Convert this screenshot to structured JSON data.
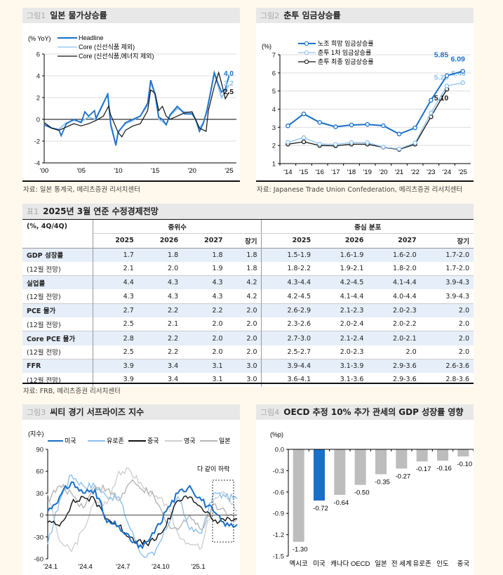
{
  "colors": {
    "blue": "#1a6fc9",
    "lightblue": "#8cc0ee",
    "black": "#111111",
    "gray": "#c8c8c8",
    "gray2": "#b0b0b0",
    "bar_gray": "#bdbdbd",
    "bar_us": "#1a6fc9",
    "background": "#fef9ec"
  },
  "fig1": {
    "num": "그림1",
    "title": "일본 물가상승률",
    "source": "자료: 일본 통계국, 메리츠증권 리서치센터"
  },
  "fig2": {
    "num": "그림2",
    "title": "춘투 임금상승률",
    "source": "자료: Japanese Trade Union Confederation, 메리츠증권 리서치센터"
  },
  "fig3": {
    "num": "그림3",
    "title": "씨티 경기 서프라이즈 지수",
    "annotation": "다 같이 하락"
  },
  "fig4": {
    "num": "그림4",
    "title": "OECD 추정 10% 추가 관세의 GDP 성장률 영향"
  },
  "table": {
    "num": "표1",
    "title": "2025년 3월 연준 수정경제전망",
    "unit": "(%, 4Q/4Q)",
    "group1": "중위수",
    "group2": "중심 분포",
    "cols": [
      "2025",
      "2026",
      "2027",
      "장기",
      "2025",
      "2026",
      "2027",
      "장기"
    ],
    "rows": [
      {
        "label": "GDP 성장률",
        "bold": true,
        "v": [
          "1.7",
          "1.8",
          "1.8",
          "1.8",
          "1.5-1.9",
          "1.6-1.9",
          "1.6-2.0",
          "1.7-2.0"
        ]
      },
      {
        "label": "(12월 전망)",
        "bold": false,
        "v": [
          "2.1",
          "2.0",
          "1.9",
          "1.8",
          "1.8-2.2",
          "1.9-2.1",
          "1.8-2.0",
          "1.7-2.0"
        ]
      },
      {
        "label": "실업률",
        "bold": true,
        "v": [
          "4.4",
          "4.3",
          "4.3",
          "4.2",
          "4.3-4.4",
          "4.2-4.5",
          "4.1-4.4",
          "3.9-4.3"
        ]
      },
      {
        "label": "(12월 전망)",
        "bold": false,
        "v": [
          "4.3",
          "4.3",
          "4.3",
          "4.2",
          "4.2-4.5",
          "4.1-4.4",
          "4.0-4.4",
          "3.9-4.3"
        ]
      },
      {
        "label": "PCE 물가",
        "bold": true,
        "v": [
          "2.7",
          "2.2",
          "2.2",
          "2.0",
          "2.6-2.9",
          "2.1-2.3",
          "2.0-2.3",
          "2.0"
        ]
      },
      {
        "label": "(12월 전망)",
        "bold": false,
        "v": [
          "2.5",
          "2.1",
          "2.0",
          "2.0",
          "2.3-2.6",
          "2.0-2.4",
          "2.0-2.2",
          "2.0"
        ]
      },
      {
        "label": "Core PCE 물가",
        "bold": true,
        "v": [
          "2.8",
          "2.2",
          "2.0",
          "2.0",
          "2.7-3.0",
          "2.1-2.4",
          "2.0-2.1",
          "2.0"
        ]
      },
      {
        "label": "(12월 전망)",
        "bold": false,
        "v": [
          "2.5",
          "2.2",
          "2.0",
          "2.0",
          "2.5-2.7",
          "2.0-2.3",
          "2.0",
          "2.0"
        ]
      },
      {
        "label": "FFR",
        "bold": true,
        "v": [
          "3.9",
          "3.4",
          "3.1",
          "3.0",
          "3.9-4.4",
          "3.1-3.9",
          "2.9-3.6",
          "2.6-3.6"
        ]
      },
      {
        "label": "(12월 전망)",
        "bold": false,
        "v": [
          "3.9",
          "3.4",
          "3.1",
          "3.0",
          "3.6-4.1",
          "3.1-3.6",
          "2.9-3.6",
          "2.8-3.6"
        ]
      }
    ],
    "source": "자료: FRB, 메리츠증권 리서치센터"
  },
  "chart_data": [
    {
      "type": "line",
      "title": "일본 물가상승률",
      "ylabel": "(% YoY)",
      "ylim": [
        -4,
        6
      ],
      "yticks": [
        "6",
        "4",
        "2",
        "0",
        "-2",
        "-4"
      ],
      "xlim": [
        2000,
        2026
      ],
      "xticks": [
        {
          "v": 2000,
          "label": "'00"
        },
        {
          "v": 2005,
          "label": "'05"
        },
        {
          "v": 2010,
          "label": "'10"
        },
        {
          "v": 2015,
          "label": "'15"
        },
        {
          "v": 2020,
          "label": "'20"
        },
        {
          "v": 2025,
          "label": "'25"
        }
      ],
      "series": [
        {
          "name": "Headline",
          "color": "#1a6fc9",
          "end_label": "4.0",
          "x": [
            2000,
            2001,
            2002,
            2002.3,
            2003,
            2004,
            2005,
            2005.5,
            2006,
            2006.8,
            2007,
            2008,
            2008.6,
            2009,
            2009.7,
            2010,
            2011,
            2012,
            2013,
            2014,
            2014.4,
            2015,
            2015.5,
            2016,
            2016.5,
            2017,
            2018,
            2019,
            2020,
            2020.5,
            2021,
            2021.5,
            2022,
            2022.5,
            2023,
            2023.5,
            2024,
            2024.5,
            2025
          ],
          "y": [
            -0.5,
            -0.8,
            -1.0,
            -1.5,
            -0.4,
            0.0,
            -0.3,
            0.7,
            0.3,
            0.8,
            0.1,
            1.5,
            2.3,
            -0.5,
            -2.4,
            -1.2,
            -0.3,
            0.0,
            0.3,
            1.5,
            3.6,
            2.3,
            0.2,
            0.0,
            -0.5,
            0.4,
            1.2,
            0.5,
            0.5,
            0.0,
            -1.1,
            -0.4,
            0.8,
            2.5,
            4.3,
            3.3,
            2.5,
            2.8,
            4.0
          ]
        },
        {
          "name": "Core (신선식품 제외)",
          "color": "#8cc0ee",
          "end_label": "3.2",
          "x": [
            2000,
            2001,
            2002,
            2003,
            2004,
            2005,
            2006,
            2007,
            2008,
            2008.6,
            2009,
            2009.7,
            2010,
            2011,
            2012,
            2013,
            2014,
            2014.4,
            2015,
            2015.5,
            2016,
            2016.5,
            2017,
            2018,
            2019,
            2020,
            2020.5,
            2021,
            2021.5,
            2022,
            2022.5,
            2023,
            2023.5,
            2024,
            2024.5,
            2025
          ],
          "y": [
            -0.3,
            -0.8,
            -0.9,
            -0.3,
            -0.1,
            -0.2,
            0.2,
            0.0,
            1.4,
            2.4,
            -0.3,
            -2.3,
            -1.1,
            -0.4,
            -0.1,
            0.3,
            1.3,
            3.4,
            2.2,
            0.0,
            -0.2,
            -0.5,
            0.3,
            1.0,
            0.7,
            0.6,
            -0.1,
            -0.8,
            -0.3,
            0.6,
            2.3,
            4.2,
            3.1,
            2.0,
            2.6,
            3.2
          ]
        },
        {
          "name": "Core (신선식품,에너지 제외)",
          "color": "#111111",
          "end_label": "2.5",
          "x": [
            2000,
            2001,
            2002,
            2003,
            2004,
            2005,
            2006,
            2007,
            2008,
            2008.7,
            2009,
            2010,
            2010.5,
            2011,
            2012,
            2013,
            2014,
            2014.4,
            2015,
            2015.5,
            2016,
            2016.5,
            2017,
            2018,
            2019,
            2020,
            2021,
            2021.9,
            2022.2,
            2023,
            2023.6,
            2024,
            2024.5,
            2025
          ],
          "y": [
            -0.3,
            -0.8,
            -1.0,
            -0.7,
            -0.4,
            -0.6,
            -0.4,
            -0.1,
            0.3,
            1.2,
            0.4,
            -1.2,
            -1.6,
            -1.0,
            -0.6,
            -0.4,
            0.8,
            2.7,
            2.4,
            0.8,
            1.2,
            0.3,
            0.0,
            0.3,
            0.6,
            0.7,
            -0.8,
            -1.1,
            0.8,
            3.0,
            4.3,
            3.3,
            1.9,
            2.5
          ]
        }
      ]
    },
    {
      "type": "line",
      "title": "춘투 임금상승률",
      "ylabel": "(%)",
      "ylim": [
        1,
        7
      ],
      "yticks": [
        "7",
        "6",
        "5",
        "4",
        "3",
        "2",
        "1"
      ],
      "categories": [
        "'14",
        "'15",
        "'16",
        "'17",
        "'18",
        "'19",
        "'20",
        "'21",
        "'22",
        "'23",
        "'24",
        "'25"
      ],
      "series": [
        {
          "name": "노조 희망 임금상승률",
          "color": "#1a6fc9",
          "values": [
            3.08,
            3.74,
            3.27,
            3.03,
            3.13,
            3.16,
            3.09,
            2.63,
            2.97,
            4.49,
            5.85,
            6.09
          ],
          "labels": {
            "10": "5.85",
            "11": "6.09"
          }
        },
        {
          "name": "춘투 1차 임금상승률",
          "color": "#8cc0ee",
          "values": [
            2.17,
            2.43,
            2.08,
            2.06,
            2.16,
            2.16,
            1.91,
            1.81,
            2.14,
            3.8,
            5.28,
            5.46
          ],
          "labels": {
            "10": "5.28",
            "11": "5.46"
          }
        },
        {
          "name": "춘투 최종 임금상승률",
          "color": "#111111",
          "values": [
            2.07,
            2.2,
            2.0,
            1.98,
            2.07,
            2.07,
            1.9,
            1.78,
            2.07,
            3.58,
            5.1,
            null
          ],
          "labels": {
            "10": "5.10"
          }
        }
      ]
    },
    {
      "type": "line",
      "title": "씨티 경기 서프라이즈 지수",
      "ylabel": "(지수)",
      "ylim": [
        -60,
        90
      ],
      "yticks": [
        "90",
        "60",
        "30",
        "0",
        "-30",
        "-60"
      ],
      "xlim": [
        0,
        15.1
      ],
      "xticks": [
        {
          "v": 0,
          "label": "'24.1"
        },
        {
          "v": 3,
          "label": "'24.4"
        },
        {
          "v": 6,
          "label": "'24.7"
        },
        {
          "v": 9,
          "label": "'24.10"
        },
        {
          "v": 12,
          "label": "'25.1"
        }
      ],
      "series": [
        {
          "name": "영국",
          "color": "#d0d0d0",
          "y": [
            30,
            -35,
            -50,
            -20,
            20,
            15,
            60,
            60,
            40,
            25,
            15,
            -25,
            -40,
            -45,
            20,
            30,
            5
          ]
        },
        {
          "name": "일본",
          "color": "#b5b5b5",
          "y": [
            20,
            40,
            30,
            10,
            40,
            35,
            20,
            45,
            35,
            25,
            -10,
            -20,
            0,
            -20,
            15,
            5,
            -5
          ]
        },
        {
          "name": "유로존",
          "color": "#8cc0ee",
          "y": [
            -40,
            20,
            55,
            40,
            40,
            25,
            25,
            -20,
            -55,
            -55,
            -20,
            25,
            -20,
            -25,
            30,
            25,
            22
          ]
        },
        {
          "name": "중국",
          "color": "#111111",
          "y": [
            -10,
            -15,
            15,
            25,
            20,
            -5,
            -15,
            -30,
            -40,
            -35,
            -15,
            20,
            25,
            10,
            -8,
            -8,
            -5
          ]
        },
        {
          "name": "미국",
          "color": "#1a6fc9",
          "y": [
            5,
            25,
            45,
            30,
            35,
            -10,
            -15,
            -35,
            -45,
            -25,
            5,
            30,
            40,
            20,
            5,
            -15,
            -13
          ]
        }
      ]
    },
    {
      "type": "bar",
      "title": "OECD 추정 10% 추가 관세의 GDP 성장률 영향",
      "ylabel": "(%p)",
      "ylim": [
        -1.5,
        0
      ],
      "yticks": [
        "0.0",
        "-0.3",
        "-0.6",
        "-0.9",
        "-1.2",
        "-1.5"
      ],
      "categories": [
        "멕시코",
        "미국",
        "캐나다",
        "OECD",
        "일본",
        "전 세계",
        "유로존",
        "인도",
        "중국"
      ],
      "values": [
        -1.3,
        -0.72,
        -0.64,
        -0.5,
        -0.35,
        -0.27,
        -0.17,
        -0.16,
        -0.1
      ],
      "labels": [
        "-1.30",
        "-0.72",
        "-0.64",
        "-0.50",
        "-0.35",
        "-0.27",
        "-0.17",
        "-0.16",
        "-0.10"
      ],
      "highlight": "미국"
    }
  ]
}
